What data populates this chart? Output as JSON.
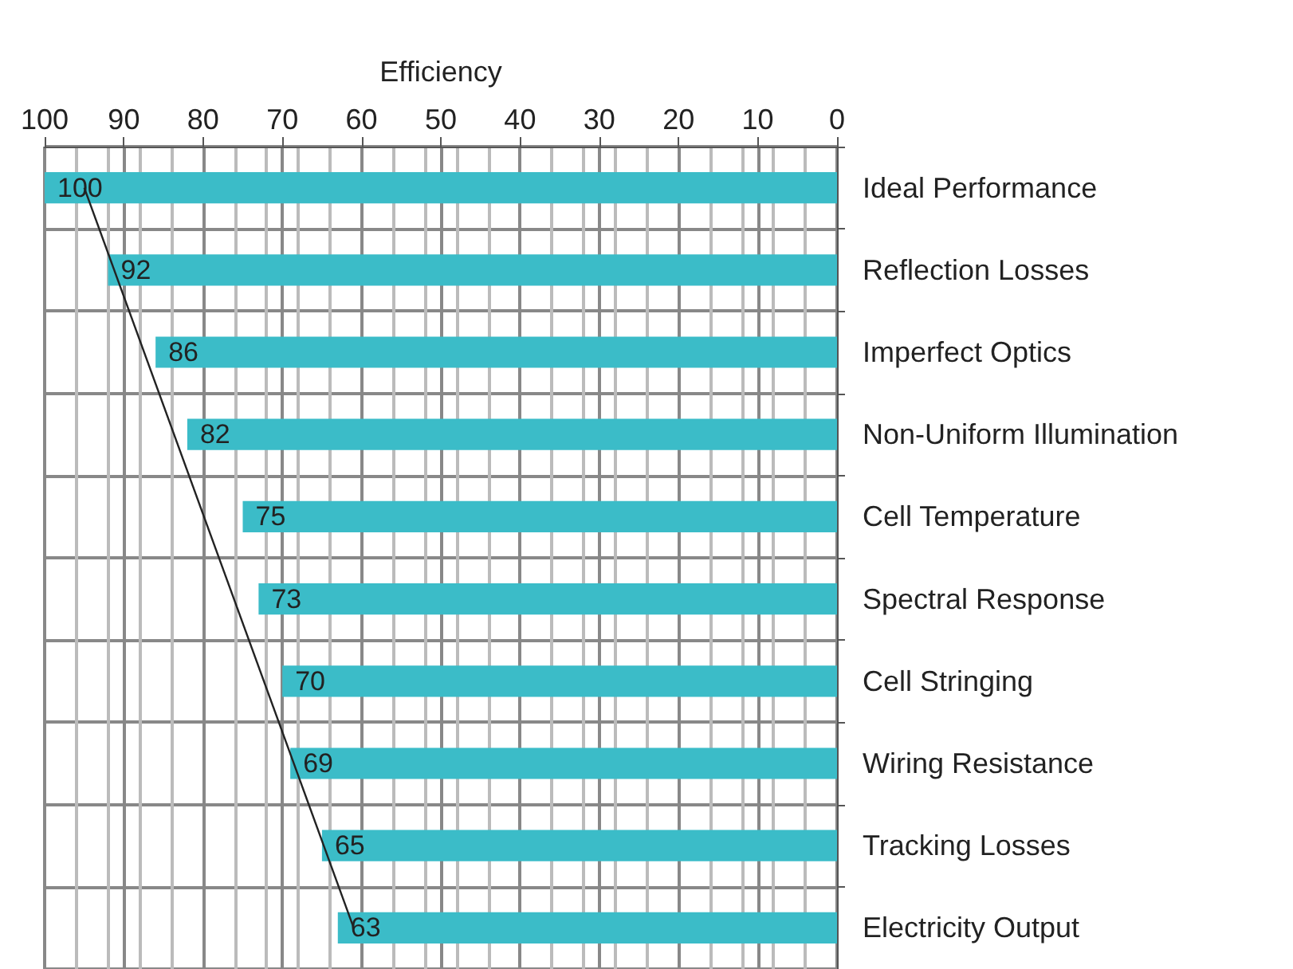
{
  "chart_data": {
    "type": "bar",
    "orientation": "horizontal",
    "xlabel": "Efficiency",
    "categories": [
      "Ideal Performance",
      "Reflection Losses",
      "Imperfect Optics",
      "Non-Uniform Illumination",
      "Cell Temperature",
      "Spectral Response",
      "Cell Stringing",
      "Wiring Resistance",
      "Tracking Losses",
      "Electricity Output"
    ],
    "series": [
      {
        "color": "#3bbcc8",
        "values": [
          100,
          92,
          86,
          82,
          75,
          73,
          70,
          69,
          65,
          63
        ],
        "value_labels": [
          "100",
          "92",
          "86",
          "82",
          "75",
          "73",
          "70",
          "69",
          "65",
          "63"
        ]
      },
      {
        "type": "line",
        "color": "#222222",
        "values": [
          95,
          null,
          null,
          null,
          null,
          null,
          null,
          null,
          null,
          61
        ]
      }
    ],
    "xlim": [
      100,
      0
    ],
    "xticks": [
      100,
      90,
      80,
      70,
      60,
      50,
      40,
      30,
      20,
      10,
      0
    ],
    "grid": true
  }
}
